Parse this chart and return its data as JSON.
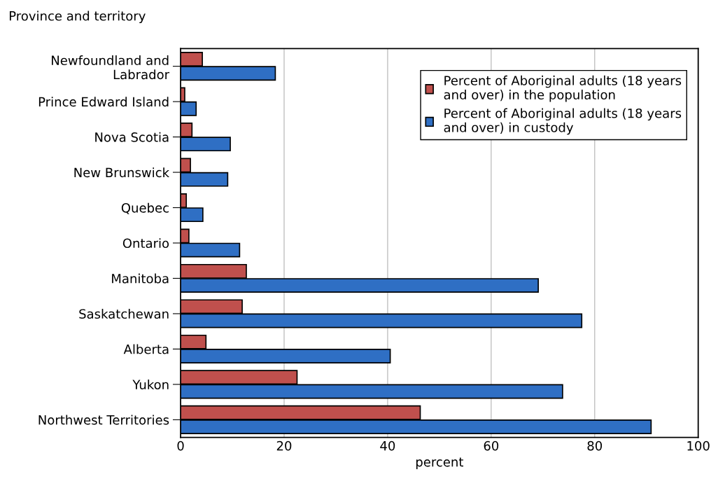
{
  "chart_data": {
    "type": "bar",
    "orientation": "horizontal",
    "title": "Province and territory",
    "xlabel": "percent",
    "categories": [
      "Newfoundland and\nLabrador",
      "Prince Edward Island",
      "Nova Scotia",
      "New Brunswick",
      "Quebec",
      "Ontario",
      "Manitoba",
      "Saskatchewan",
      "Alberta",
      "Yukon",
      "Northwest Territories"
    ],
    "series": [
      {
        "name": "Percent of Aboriginal adults (18 years\nand over) in the population",
        "color": "#c0504d",
        "values": [
          4.2,
          0.8,
          2.2,
          1.9,
          1.1,
          1.6,
          12.7,
          11.9,
          4.9,
          22.5,
          46.3
        ]
      },
      {
        "name": "Percent of Aboriginal adults (18 years\nand over) in custody",
        "color": "#2f6fc4",
        "values": [
          18.3,
          3.0,
          9.6,
          9.1,
          4.3,
          11.4,
          69.1,
          77.5,
          40.5,
          73.8,
          90.9
        ]
      }
    ],
    "xlim": [
      0,
      100
    ],
    "xticks": [
      0,
      20,
      40,
      60,
      80,
      100
    ],
    "grid": "x",
    "legend": "top right"
  }
}
